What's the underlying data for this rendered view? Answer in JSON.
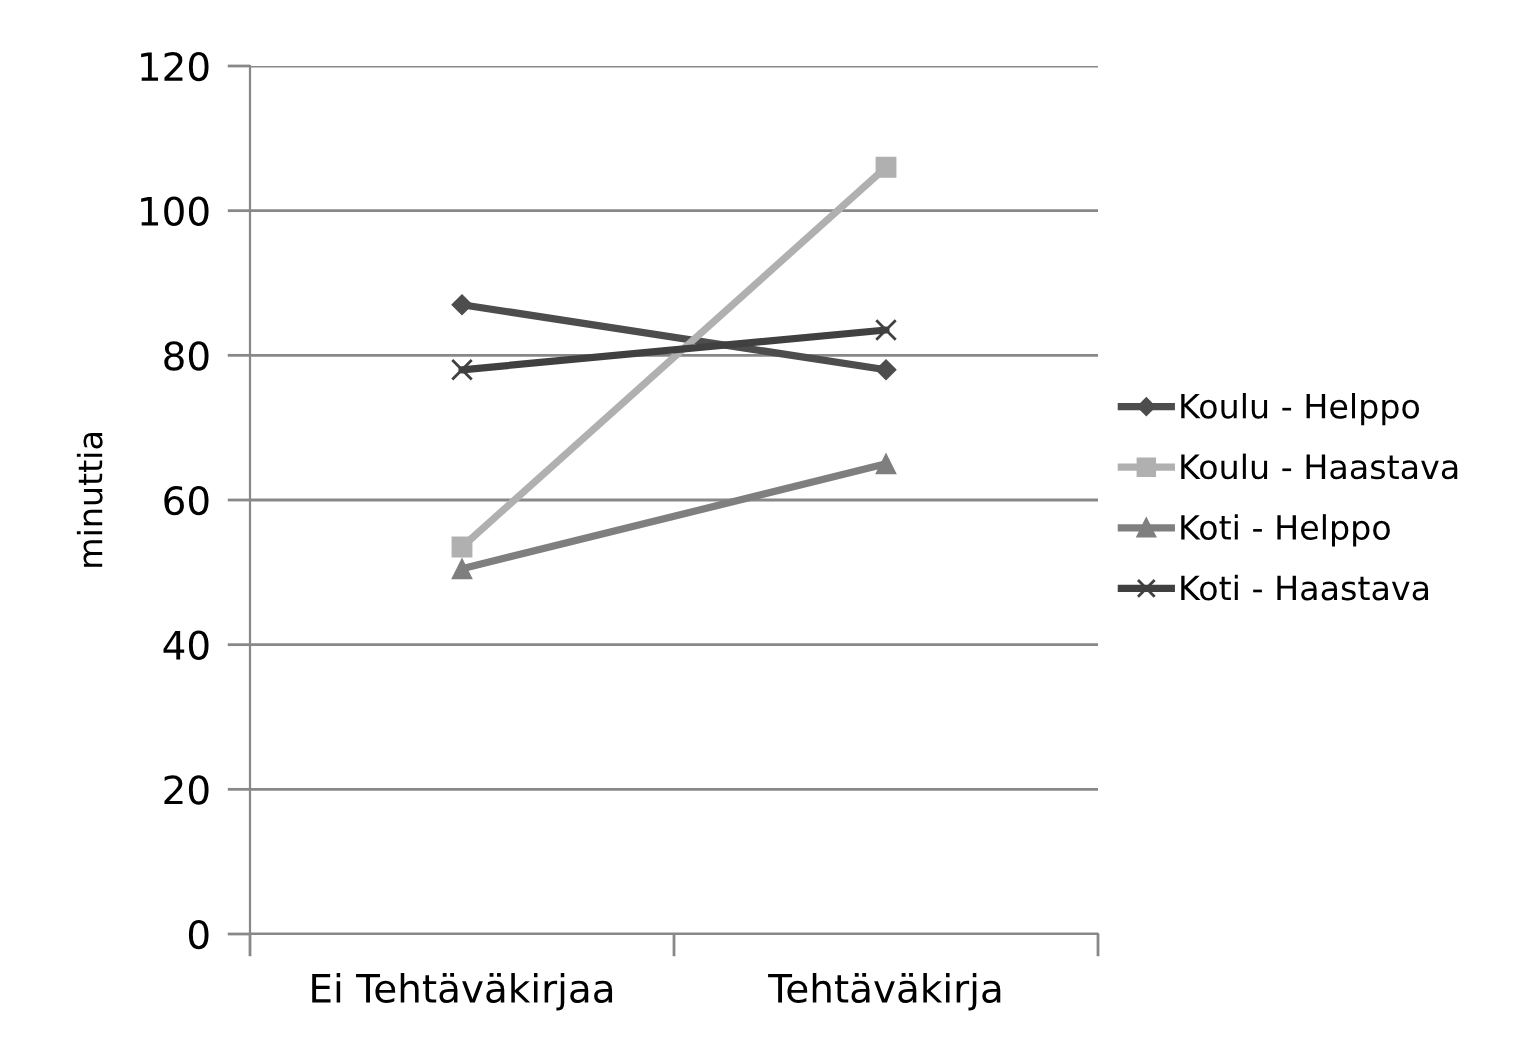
{
  "chart_data": {
    "type": "line",
    "ylabel": "minuttia",
    "categories": [
      "Ei Tehtäväkirjaa",
      "Tehtäväkirja"
    ],
    "series": [
      {
        "name": "Koulu - Helppo",
        "color": "#4d4d4d",
        "marker": "diamond",
        "values": [
          87,
          78
        ]
      },
      {
        "name": "Koulu - Haastava",
        "color": "#b0b0b0",
        "marker": "square",
        "values": [
          53.5,
          106
        ]
      },
      {
        "name": "Koti - Helppo",
        "color": "#7f7f7f",
        "marker": "triangle",
        "values": [
          50.5,
          65
        ]
      },
      {
        "name": "Koti - Haastava",
        "color": "#404040",
        "marker": "cross",
        "values": [
          78,
          83.5
        ]
      }
    ],
    "ylim": [
      0,
      120
    ],
    "yticks": [
      0,
      20,
      40,
      60,
      80,
      100,
      120
    ],
    "grid": "y",
    "legend": "right",
    "line_style": "solid"
  }
}
